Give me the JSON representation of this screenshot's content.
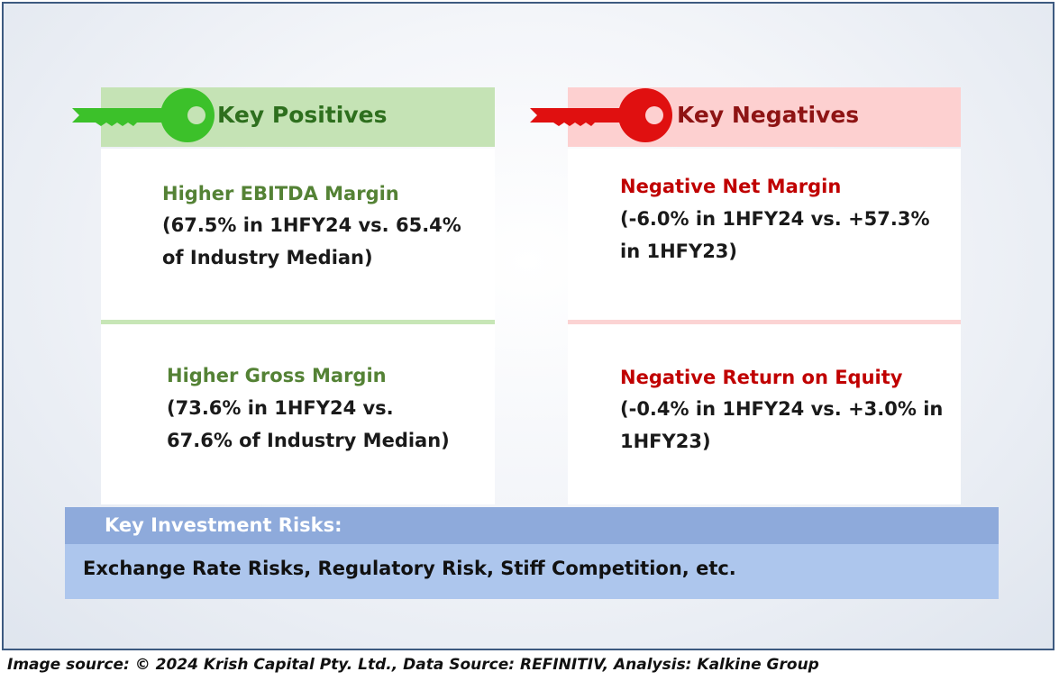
{
  "positives": {
    "title": "Key Positives",
    "items": [
      {
        "title": "Higher EBITDA Margin",
        "line1": "(67.5% in 1HFY24 vs. 65.4%",
        "line2": "of Industry Median)"
      },
      {
        "title": "Higher Gross Margin",
        "line1": "(73.6% in 1HFY24 vs.",
        "line2": "67.6% of Industry Median)"
      }
    ]
  },
  "negatives": {
    "title": "Key Negatives",
    "items": [
      {
        "title": "Negative Net Margin",
        "line1": "(-6.0% in 1HFY24 vs. +57.3%",
        "line2": "in 1HFY23)"
      },
      {
        "title": "Negative Return on Equity",
        "line1": "(-0.4% in 1HFY24 vs. +3.0% in",
        "line2": "1HFY23)"
      }
    ]
  },
  "risks": {
    "title": "Key Investment Risks:",
    "text": "Exchange Rate Risks, Regulatory Risk, Stiff Competition, etc."
  },
  "caption": "Image source: © 2024 Krish Capital Pty. Ltd., Data Source: REFINITIV, Analysis: Kalkine Group",
  "colors": {
    "positive_key": "#3cc12a",
    "negative_key": "#e01010",
    "positive_header": "#c5e3b5",
    "negative_header": "#fdd0d0",
    "risks_header": "#8eaadb",
    "risks_body": "#adc6ed"
  },
  "icons": [
    "green-key-icon",
    "red-key-icon"
  ]
}
